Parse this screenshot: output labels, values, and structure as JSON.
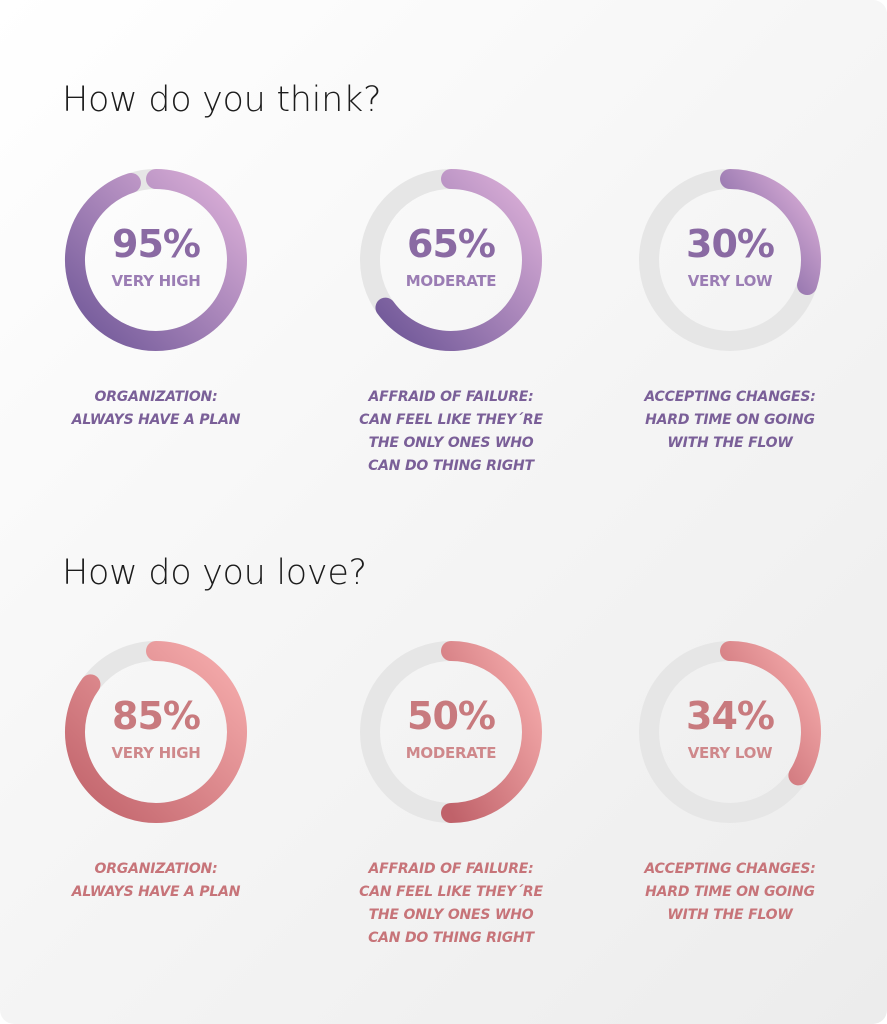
{
  "sections": [
    {
      "title": "How do you think?",
      "colors": {
        "start": "#dfb2da",
        "end": "#6e5697",
        "track": "#e6e6e6"
      },
      "gauges": [
        {
          "percent": 95,
          "value_label": "95%",
          "level": "VERY HIGH",
          "description": [
            "ORGANIZATION:",
            "ALWAYS HAVE A PLAN"
          ]
        },
        {
          "percent": 65,
          "value_label": "65%",
          "level": "MODERATE",
          "description": [
            "AFFRAID OF FAILURE:",
            "CAN FEEL LIKE THEY´RE",
            "THE ONLY ONES WHO",
            "CAN DO THING RIGHT"
          ]
        },
        {
          "percent": 30,
          "value_label": "30%",
          "level": "VERY LOW",
          "description": [
            "ACCEPTING CHANGES:",
            "HARD TIME ON GOING",
            "WITH THE FLOW"
          ]
        }
      ]
    },
    {
      "title": "How do you love?",
      "colors": {
        "start": "#f7aeae",
        "end": "#c0626a",
        "track": "#e6e6e6"
      },
      "gauges": [
        {
          "percent": 85,
          "value_label": "85%",
          "level": "VERY HIGH",
          "description": [
            "ORGANIZATION:",
            "ALWAYS HAVE A PLAN"
          ]
        },
        {
          "percent": 50,
          "value_label": "50%",
          "level": "MODERATE",
          "description": [
            "AFFRAID OF FAILURE:",
            "CAN FEEL LIKE THEY´RE",
            "THE ONLY ONES WHO",
            "CAN DO THING RIGHT"
          ]
        },
        {
          "percent": 34,
          "value_label": "34%",
          "level": "VERY LOW",
          "description": [
            "ACCEPTING CHANGES:",
            "HARD TIME ON GOING",
            "WITH THE FLOW"
          ]
        }
      ]
    }
  ],
  "chart_data": [
    {
      "type": "donut",
      "title": "How do you think?",
      "categories": [
        "ORGANIZATION: ALWAYS HAVE A PLAN",
        "AFFRAID OF FAILURE: CAN FEEL LIKE THEY´RE THE ONLY ONES WHO CAN DO THING RIGHT",
        "ACCEPTING CHANGES: HARD TIME ON GOING WITH THE FLOW"
      ],
      "values": [
        95,
        65,
        30
      ],
      "labels": [
        "VERY HIGH",
        "MODERATE",
        "VERY LOW"
      ],
      "ylim": [
        0,
        100
      ]
    },
    {
      "type": "donut",
      "title": "How do you love?",
      "categories": [
        "ORGANIZATION: ALWAYS HAVE A PLAN",
        "AFFRAID OF FAILURE: CAN FEEL LIKE THEY´RE THE ONLY ONES WHO CAN DO THING RIGHT",
        "ACCEPTING CHANGES: HARD TIME ON GOING WITH THE FLOW"
      ],
      "values": [
        85,
        50,
        34
      ],
      "labels": [
        "VERY HIGH",
        "MODERATE",
        "VERY LOW"
      ],
      "ylim": [
        0,
        100
      ]
    }
  ]
}
